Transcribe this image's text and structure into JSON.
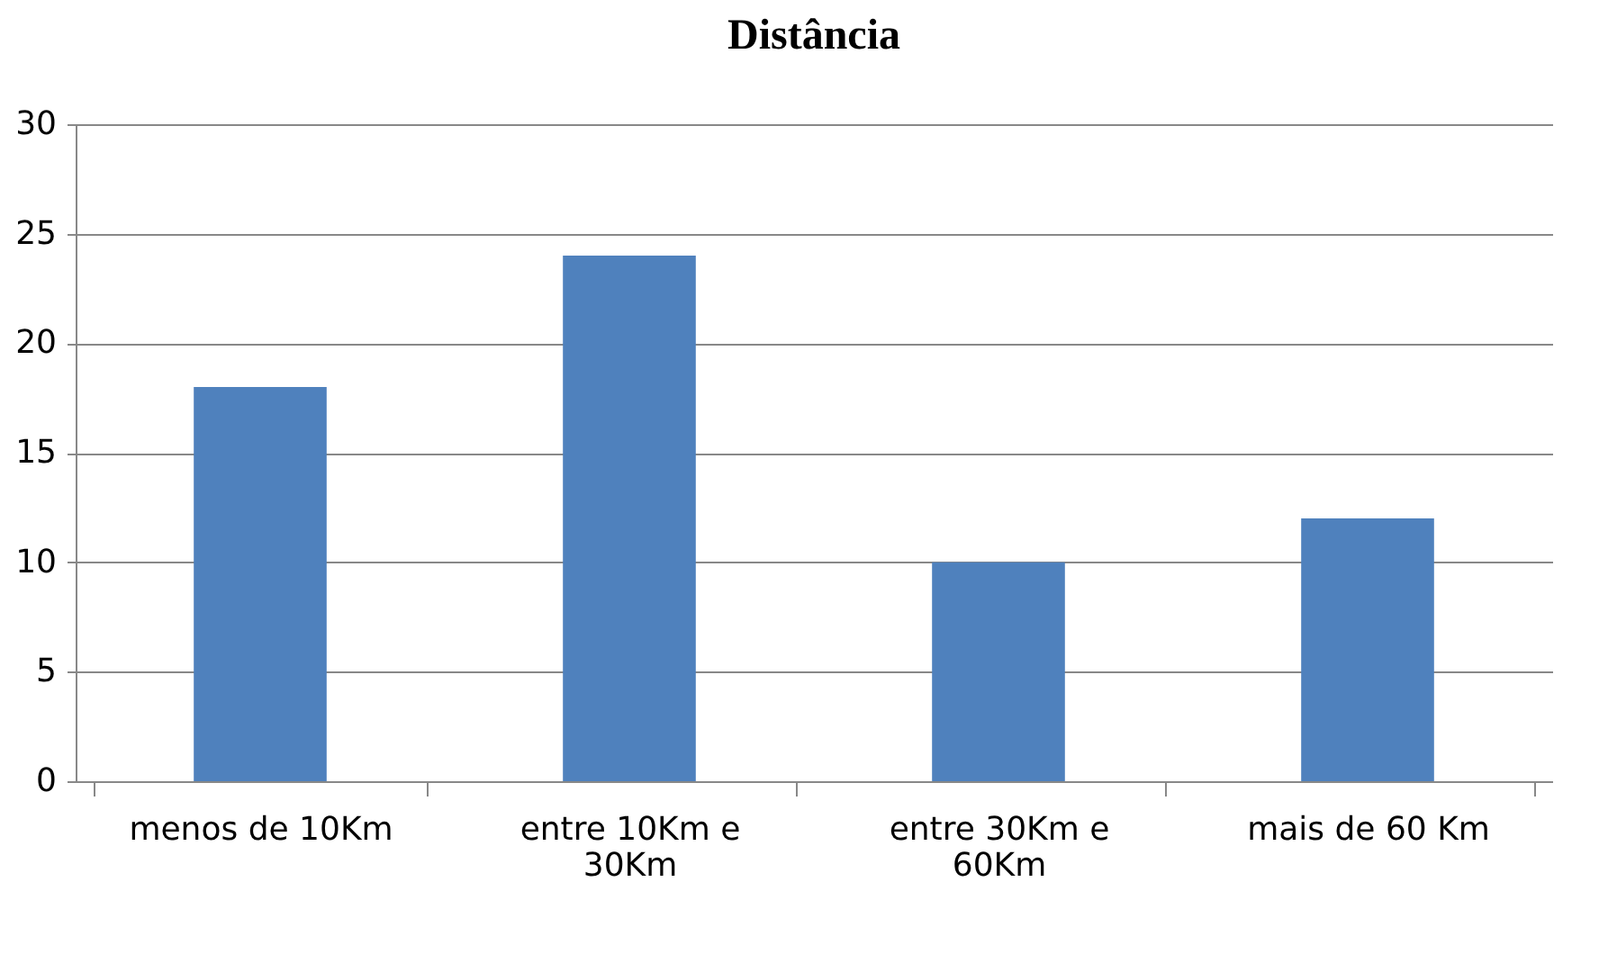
{
  "chart_data": {
    "type": "bar",
    "title": "Distância",
    "categories": [
      "menos de 10Km",
      "entre 10Km e 30Km",
      "entre 30Km e 60Km",
      "mais de 60 Km"
    ],
    "values": [
      18,
      24,
      10,
      12
    ],
    "color": "#4f81bd",
    "ylim": [
      0,
      30
    ],
    "yticks": [
      0,
      5,
      10,
      15,
      20,
      25,
      30
    ],
    "grid": "y",
    "legend": false
  }
}
